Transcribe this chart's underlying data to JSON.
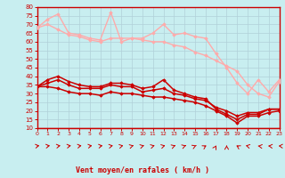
{
  "xlabel": "Vent moyen/en rafales ( km/h )",
  "bg_color": "#c8eef0",
  "grid_color": "#b0d0d8",
  "xmin": 0,
  "xmax": 23,
  "ymin": 10,
  "ymax": 80,
  "yticks": [
    10,
    15,
    20,
    25,
    30,
    35,
    40,
    45,
    50,
    55,
    60,
    65,
    70,
    75,
    80
  ],
  "xticks": [
    0,
    1,
    2,
    3,
    4,
    5,
    6,
    7,
    8,
    9,
    10,
    11,
    12,
    13,
    14,
    15,
    16,
    17,
    18,
    19,
    20,
    21,
    22,
    23
  ],
  "series": [
    {
      "color": "#ffaaaa",
      "lw": 1.0,
      "marker": "D",
      "ms": 1.8,
      "data": [
        68,
        73,
        76,
        65,
        64,
        62,
        61,
        77,
        60,
        62,
        62,
        65,
        70,
        64,
        65,
        63,
        62,
        53,
        45,
        36,
        30,
        38,
        31,
        38
      ]
    },
    {
      "color": "#ffaaaa",
      "lw": 1.0,
      "marker": "D",
      "ms": 1.8,
      "data": [
        68,
        70,
        67,
        64,
        63,
        61,
        60,
        62,
        62,
        62,
        61,
        60,
        60,
        58,
        57,
        54,
        52,
        49,
        46,
        43,
        35,
        30,
        28,
        37
      ]
    },
    {
      "color": "#cc0000",
      "lw": 1.1,
      "marker": "D",
      "ms": 1.8,
      "data": [
        34,
        38,
        40,
        37,
        35,
        34,
        34,
        36,
        36,
        35,
        33,
        34,
        38,
        32,
        30,
        28,
        27,
        21,
        18,
        15,
        18,
        18,
        21,
        21
      ]
    },
    {
      "color": "#cc0000",
      "lw": 1.1,
      "marker": "D",
      "ms": 1.8,
      "data": [
        34,
        36,
        38,
        35,
        33,
        33,
        33,
        35,
        34,
        34,
        31,
        32,
        33,
        30,
        29,
        27,
        26,
        22,
        20,
        17,
        19,
        19,
        21,
        21
      ]
    },
    {
      "color": "#cc0000",
      "lw": 1.1,
      "marker": "D",
      "ms": 1.8,
      "data": [
        34,
        34,
        33,
        31,
        30,
        30,
        29,
        31,
        30,
        30,
        29,
        28,
        28,
        27,
        26,
        25,
        23,
        20,
        17,
        13,
        17,
        17,
        19,
        20
      ]
    }
  ],
  "arrow_angles": [
    45,
    45,
    45,
    45,
    45,
    45,
    45,
    40,
    35,
    30,
    30,
    30,
    30,
    25,
    25,
    20,
    15,
    5,
    0,
    -15,
    -35,
    -50,
    -60,
    -70
  ],
  "arrow_color": "#cc0000",
  "axis_color": "#cc0000",
  "tick_color": "#cc0000",
  "label_color": "#cc0000"
}
